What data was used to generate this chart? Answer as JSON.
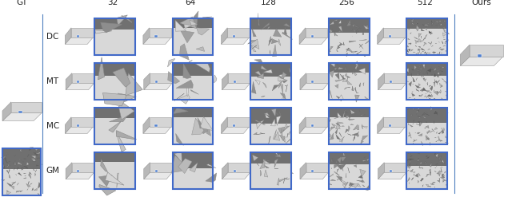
{
  "figsize": [
    6.4,
    2.47
  ],
  "dpi": 100,
  "row_labels": [
    "GM",
    "MC",
    "MT",
    "DC"
  ],
  "col_labels": [
    "32",
    "64",
    "128",
    "256",
    "512"
  ],
  "gt_label": "GT",
  "ours_label": "Ours",
  "label_fontsize": 7.5,
  "tick_fontsize": 7.5,
  "border_color": "#4169C8",
  "border_lw": 1.5,
  "divider_color": "#5080C0",
  "divider_lw": 0.8,
  "text_color": "#222222",
  "n_rows": 4,
  "n_cols": 5,
  "white": "#ffffff",
  "light_gray": "#d8d8d8",
  "mid_gray": "#aaaaaa",
  "dark_gray": "#707070",
  "darker_gray": "#404040"
}
